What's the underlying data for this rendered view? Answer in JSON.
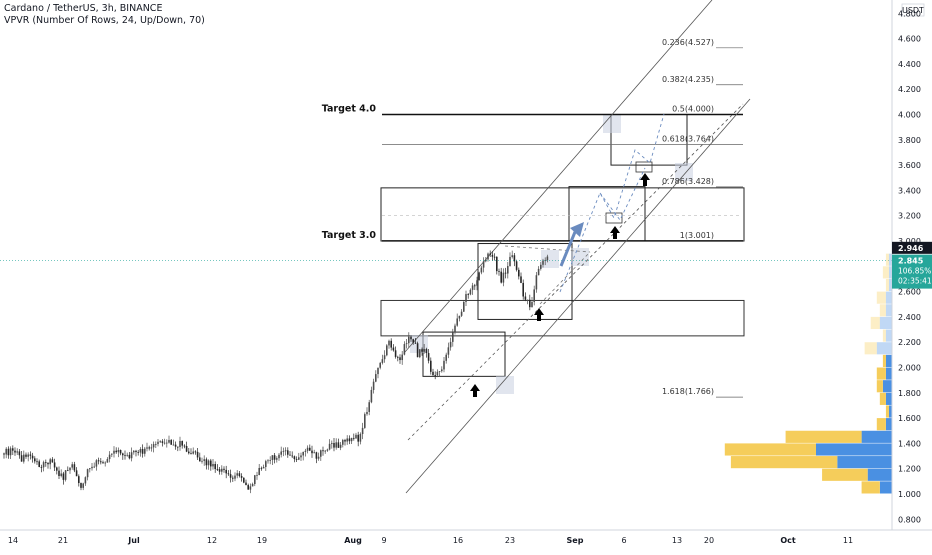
{
  "header": {
    "symbol_line": "Cardano / TetherUS, 3h, BINANCE",
    "indicator_line": "VPVR (Number Of Rows, 24, Up/Down, 70)"
  },
  "chart_data": {
    "type": "candlestick",
    "title": "Cardano / TetherUS, 3h, BINANCE",
    "y_unit": "USDT",
    "ylim": [
      0.7,
      4.95
    ],
    "grid": false,
    "x_ticks": [
      "14",
      "21",
      "Jul",
      "12",
      "19",
      "Aug",
      "9",
      "16",
      "23",
      "Sep",
      "6",
      "13",
      "20",
      "Oct",
      "11"
    ],
    "y_ticks": [
      "0.800",
      "1.000",
      "1.200",
      "1.400",
      "1.600",
      "1.800",
      "2.000",
      "2.200",
      "2.400",
      "2.600",
      "2.800",
      "3.000",
      "3.200",
      "3.400",
      "3.600",
      "3.800",
      "4.000",
      "4.200",
      "4.400",
      "4.600",
      "4.800"
    ],
    "price_points": [
      1.32,
      1.34,
      1.33,
      1.28,
      1.3,
      1.25,
      1.22,
      1.27,
      1.24,
      1.18,
      1.12,
      1.22,
      1.2,
      1.05,
      1.16,
      1.22,
      1.28,
      1.26,
      1.33,
      1.35,
      1.28,
      1.3,
      1.36,
      1.34,
      1.33,
      1.4,
      1.43,
      1.38,
      1.42,
      1.36,
      1.4,
      1.35,
      1.33,
      1.27,
      1.25,
      1.24,
      1.18,
      1.2,
      1.16,
      1.14,
      1.13,
      1.05,
      1.08,
      1.18,
      1.22,
      1.28,
      1.3,
      1.35,
      1.3,
      1.28,
      1.31,
      1.34,
      1.33,
      1.3,
      1.35,
      1.37,
      1.38,
      1.4,
      1.42,
      1.45,
      1.44,
      1.6,
      1.78,
      1.95,
      2.05,
      2.2,
      2.12,
      2.08,
      2.2,
      2.25,
      2.1,
      2.15,
      2.0,
      1.92,
      1.98,
      2.12,
      2.3,
      2.42,
      2.55,
      2.6,
      2.68,
      2.8,
      2.92,
      2.85,
      2.68,
      2.78,
      2.9,
      2.72,
      2.55,
      2.48,
      2.7,
      2.88,
      2.85
    ],
    "current_price": {
      "value": "2.845",
      "change": "106.85%",
      "countdown": "02:35:41",
      "color": "#26a69a"
    },
    "marker_price": {
      "value": "2.946",
      "color": "#131722"
    },
    "fib_levels": [
      {
        "label": "0.236(4.527)",
        "price": 4.527
      },
      {
        "label": "0.382(4.235)",
        "price": 4.235
      },
      {
        "label": "0.5(4.000)",
        "price": 4.0
      },
      {
        "label": "0.618(3.764)",
        "price": 3.764
      },
      {
        "label": "0.786(3.428)",
        "price": 3.428
      },
      {
        "label": "1(3.001)",
        "price": 3.001
      },
      {
        "label": "1.618(1.766)",
        "price": 1.766
      }
    ],
    "targets": [
      {
        "label": "Target 4.0",
        "price": 4.0
      },
      {
        "label": "Target 3.0",
        "price": 3.0
      }
    ],
    "zones": [
      {
        "name": "upper-zone",
        "from": 3.0,
        "to": 3.42
      },
      {
        "name": "lower-zone",
        "from": 2.25,
        "to": 2.53
      }
    ],
    "volume_profile": {
      "row_prices": [
        1.05,
        1.15,
        1.25,
        1.35,
        1.45,
        1.55,
        1.65,
        1.75,
        1.85,
        1.95,
        2.05,
        2.15,
        2.25,
        2.35,
        2.45,
        2.55,
        2.65,
        2.75,
        2.85
      ],
      "up": [
        0.06,
        0.15,
        0.35,
        0.3,
        0.25,
        0.03,
        0.01,
        0.02,
        0.02,
        0.03,
        0.01,
        0.04,
        0.01,
        0.03,
        0.02,
        0.03,
        0.01,
        0.02,
        0.01
      ],
      "down": [
        0.04,
        0.08,
        0.18,
        0.25,
        0.1,
        0.02,
        0.01,
        0.02,
        0.03,
        0.02,
        0.02,
        0.05,
        0.02,
        0.04,
        0.02,
        0.02,
        0.01,
        0.01,
        0.01
      ],
      "up_color": "#f5cd5b",
      "down_color": "#4a90e2"
    },
    "colors": {
      "candle_up": "#4d4d4d",
      "candle_down": "#262626",
      "arrow": "#000000",
      "projection": "#6a8bbf"
    }
  }
}
